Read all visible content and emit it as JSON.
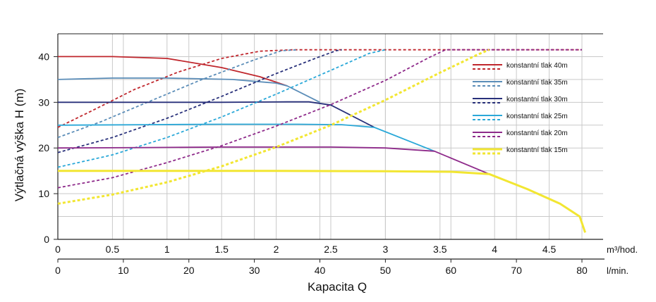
{
  "chart_data": {
    "type": "line",
    "xlabel": "Kapacita Q",
    "ylabel": "Výtlačná výška H (m)",
    "x_unit_primary": "m³/hod.",
    "x_unit_secondary": "l/min.",
    "xlim": [
      0,
      5
    ],
    "ylim": [
      0,
      45
    ],
    "x_ticks_primary": [
      "0",
      "0.5",
      "1",
      "1.5",
      "2",
      "2.5",
      "3",
      "3.5",
      "4",
      "4.5"
    ],
    "x_ticks_secondary": [
      "0",
      "10",
      "20",
      "30",
      "40",
      "50",
      "60",
      "70",
      "80"
    ],
    "y_ticks": [
      "0",
      "10",
      "20",
      "30",
      "40"
    ],
    "grid": true,
    "legend_position": "right",
    "series": [
      {
        "name": "konstantní tlak 40m",
        "color": "#c0272d",
        "solid": [
          [
            0,
            40
          ],
          [
            0.5,
            40
          ],
          [
            1.0,
            39.6
          ],
          [
            1.5,
            37.6
          ],
          [
            1.85,
            35.6
          ],
          [
            2.1,
            33.6
          ]
        ],
        "dashed": [
          [
            0,
            24.5
          ],
          [
            0.3,
            28
          ],
          [
            0.7,
            32.8
          ],
          [
            1.1,
            36.6
          ],
          [
            1.5,
            39.6
          ],
          [
            1.85,
            41.2
          ],
          [
            2.15,
            41.5
          ],
          [
            4.8,
            41.5
          ]
        ]
      },
      {
        "name": "konstantní tlak 35m",
        "color": "#5b8db8",
        "solid": [
          [
            0,
            35
          ],
          [
            0.5,
            35.3
          ],
          [
            1.0,
            35.3
          ],
          [
            1.6,
            35
          ],
          [
            2.0,
            34.2
          ],
          [
            2.1,
            33.6
          ],
          [
            2.4,
            30
          ]
        ],
        "dashed": [
          [
            0,
            22.3
          ],
          [
            0.4,
            25.8
          ],
          [
            0.8,
            29.8
          ],
          [
            1.3,
            34.8
          ],
          [
            1.8,
            39.3
          ],
          [
            2.05,
            41.3
          ],
          [
            2.2,
            41.5
          ]
        ]
      },
      {
        "name": "konstantní tlak 30m",
        "color": "#28307a",
        "solid": [
          [
            0,
            30
          ],
          [
            0.8,
            30
          ],
          [
            1.5,
            30
          ],
          [
            2.1,
            30.1
          ],
          [
            2.3,
            30.1
          ],
          [
            2.5,
            29.4
          ],
          [
            2.9,
            24.5
          ]
        ],
        "dashed": [
          [
            0,
            19
          ],
          [
            0.5,
            22.3
          ],
          [
            1.0,
            26.5
          ],
          [
            1.5,
            31.3
          ],
          [
            2.0,
            36.3
          ],
          [
            2.4,
            40
          ],
          [
            2.55,
            41.3
          ],
          [
            2.6,
            41.5
          ]
        ]
      },
      {
        "name": "konstantní tlak 25m",
        "color": "#2aa8d8",
        "solid": [
          [
            0,
            25
          ],
          [
            0.8,
            25.1
          ],
          [
            1.5,
            25.2
          ],
          [
            2.2,
            25.2
          ],
          [
            2.6,
            25.1
          ],
          [
            2.9,
            24.5
          ],
          [
            3.45,
            19.3
          ]
        ],
        "dashed": [
          [
            0,
            15.8
          ],
          [
            0.5,
            18.5
          ],
          [
            1.0,
            22.3
          ],
          [
            1.5,
            26.8
          ],
          [
            2.0,
            31.8
          ],
          [
            2.5,
            37
          ],
          [
            2.85,
            40.7
          ],
          [
            3.0,
            41.5
          ]
        ]
      },
      {
        "name": "konstantní tlak 20m",
        "color": "#8e2a8a",
        "solid": [
          [
            0,
            20
          ],
          [
            0.8,
            20.1
          ],
          [
            1.5,
            20.2
          ],
          [
            2.5,
            20.2
          ],
          [
            3.0,
            20
          ],
          [
            3.45,
            19.3
          ],
          [
            3.95,
            14.3
          ]
        ],
        "dashed": [
          [
            0,
            11.3
          ],
          [
            0.5,
            13.5
          ],
          [
            1.0,
            16.8
          ],
          [
            1.5,
            20.5
          ],
          [
            2.0,
            24.8
          ],
          [
            2.5,
            29.5
          ],
          [
            3.0,
            34.8
          ],
          [
            3.4,
            39.8
          ],
          [
            3.55,
            41.5
          ],
          [
            4.8,
            41.5
          ]
        ]
      },
      {
        "name": "konstantní tlak 15m",
        "color": "#f2e632",
        "solid": [
          [
            0,
            15
          ],
          [
            1.0,
            15
          ],
          [
            2.0,
            15
          ],
          [
            3.0,
            14.9
          ],
          [
            3.6,
            14.8
          ],
          [
            3.95,
            14.3
          ],
          [
            4.3,
            11
          ],
          [
            4.6,
            7.8
          ],
          [
            4.78,
            5
          ],
          [
            4.83,
            1.5
          ]
        ],
        "dashed": [
          [
            0,
            7.8
          ],
          [
            0.5,
            9.8
          ],
          [
            1.0,
            12.5
          ],
          [
            1.5,
            16
          ],
          [
            2.0,
            20.2
          ],
          [
            2.5,
            25
          ],
          [
            3.0,
            30.5
          ],
          [
            3.5,
            36.5
          ],
          [
            3.85,
            40.5
          ],
          [
            3.95,
            41.5
          ]
        ]
      }
    ]
  }
}
